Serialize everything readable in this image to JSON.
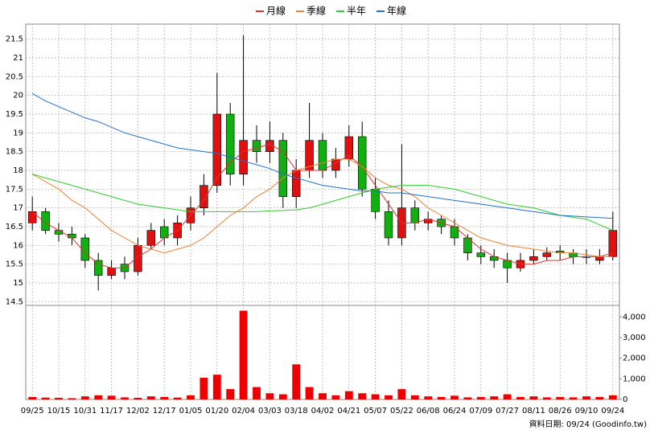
{
  "chart_data": {
    "type": "candlestick",
    "categories": [
      "09/25",
      null,
      "10/15",
      null,
      "10/31",
      null,
      "11/17",
      null,
      "12/02",
      null,
      "12/17",
      null,
      "01/05",
      null,
      "01/20",
      null,
      "02/04",
      null,
      "03/03",
      null,
      "03/18",
      null,
      "04/02",
      null,
      "04/21",
      null,
      "05/07",
      null,
      "05/22",
      null,
      "06/08",
      null,
      "06/24",
      null,
      "07/09",
      null,
      "07/27",
      null,
      "08/11",
      null,
      "08/26",
      null,
      "09/10",
      null,
      "09/24"
    ],
    "open": [
      16.6,
      16.9,
      16.4,
      16.3,
      16.2,
      15.6,
      15.2,
      15.5,
      15.3,
      16.0,
      16.5,
      16.2,
      16.6,
      17.0,
      17.6,
      19.5,
      17.9,
      18.8,
      18.5,
      18.8,
      17.3,
      18.0,
      18.8,
      18.0,
      18.3,
      18.9,
      17.5,
      16.9,
      16.2,
      17.0,
      16.6,
      16.7,
      16.5,
      16.2,
      15.8,
      15.7,
      15.6,
      15.4,
      15.6,
      15.7,
      15.85,
      15.8,
      15.7,
      15.6,
      15.7
    ],
    "high": [
      17.3,
      17.0,
      16.6,
      16.5,
      16.3,
      15.8,
      15.6,
      15.7,
      16.2,
      16.6,
      16.7,
      16.8,
      17.3,
      17.9,
      20.6,
      19.8,
      21.6,
      19.2,
      19.3,
      19.0,
      18.3,
      19.8,
      19.0,
      18.6,
      19.2,
      19.3,
      17.8,
      17.2,
      18.7,
      17.2,
      16.9,
      16.8,
      16.7,
      16.3,
      16.0,
      15.9,
      15.8,
      15.8,
      15.9,
      15.95,
      16.0,
      15.9,
      15.9,
      15.9,
      16.9
    ],
    "low": [
      16.4,
      16.3,
      16.1,
      16.0,
      15.4,
      14.8,
      15.1,
      15.1,
      15.2,
      15.9,
      16.0,
      16.0,
      16.4,
      16.8,
      17.4,
      17.6,
      17.6,
      18.2,
      18.2,
      17.0,
      17.0,
      17.8,
      17.8,
      17.8,
      18.1,
      17.3,
      16.7,
      16.0,
      16.0,
      16.4,
      16.4,
      16.3,
      16.0,
      15.6,
      15.5,
      15.4,
      15.0,
      15.3,
      15.5,
      15.6,
      15.6,
      15.5,
      15.5,
      15.5,
      15.6
    ],
    "close": [
      16.9,
      16.4,
      16.3,
      16.2,
      15.6,
      15.2,
      15.4,
      15.3,
      16.0,
      16.4,
      16.2,
      16.6,
      17.0,
      17.6,
      19.5,
      17.9,
      18.8,
      18.5,
      18.8,
      17.3,
      18.0,
      18.8,
      18.0,
      18.3,
      18.9,
      17.5,
      16.9,
      16.2,
      17.0,
      16.6,
      16.7,
      16.5,
      16.2,
      15.8,
      15.7,
      15.6,
      15.4,
      15.6,
      15.7,
      15.8,
      15.8,
      15.7,
      15.7,
      15.7,
      16.4
    ],
    "volume": [
      120,
      90,
      80,
      60,
      150,
      200,
      180,
      100,
      80,
      150,
      120,
      90,
      200,
      1050,
      1200,
      500,
      4300,
      600,
      300,
      250,
      1700,
      600,
      300,
      200,
      400,
      300,
      250,
      200,
      500,
      200,
      150,
      120,
      180,
      100,
      120,
      150,
      250,
      120,
      150,
      100,
      120,
      100,
      150,
      120,
      200
    ],
    "up_color": "#e01010",
    "down_color": "#10b010",
    "volume_color": "#ee0000",
    "series": [
      {
        "name": "月線",
        "color": "#e03030",
        "values": [
          16.9,
          16.6,
          16.4,
          16.2,
          15.8,
          15.5,
          15.4,
          15.4,
          15.7,
          15.9,
          16.2,
          16.4,
          16.8,
          17.2,
          17.8,
          18.2,
          18.5,
          18.6,
          18.7,
          18.5,
          18.0,
          18.0,
          18.0,
          18.2,
          18.4,
          18.1,
          17.6,
          17.1,
          16.6,
          16.6,
          16.7,
          16.6,
          16.5,
          16.2,
          15.9,
          15.7,
          15.6,
          15.5,
          15.5,
          15.6,
          15.6,
          15.7,
          15.7,
          15.7,
          15.8
        ]
      },
      {
        "name": "季線",
        "color": "#f08030",
        "values": [
          17.9,
          17.7,
          17.5,
          17.2,
          17.0,
          16.7,
          16.4,
          16.2,
          16.0,
          15.9,
          15.8,
          15.9,
          16.0,
          16.2,
          16.5,
          16.8,
          17.0,
          17.3,
          17.5,
          17.8,
          18.0,
          18.1,
          18.2,
          18.3,
          18.3,
          18.1,
          17.8,
          17.6,
          17.5,
          17.3,
          17.0,
          16.8,
          16.6,
          16.4,
          16.2,
          16.1,
          16.0,
          15.95,
          15.9,
          15.85,
          15.8,
          15.8,
          15.75,
          15.7,
          15.7
        ]
      },
      {
        "name": "半年",
        "color": "#30cc30",
        "values": [
          17.9,
          17.8,
          17.7,
          17.6,
          17.5,
          17.4,
          17.3,
          17.2,
          17.1,
          17.05,
          17.0,
          16.95,
          16.9,
          16.9,
          16.9,
          16.9,
          16.9,
          16.9,
          16.92,
          16.93,
          16.95,
          17.0,
          17.1,
          17.2,
          17.3,
          17.4,
          17.5,
          17.55,
          17.6,
          17.6,
          17.6,
          17.55,
          17.5,
          17.4,
          17.3,
          17.2,
          17.1,
          17.05,
          17.0,
          16.9,
          16.8,
          16.75,
          16.7,
          16.55,
          16.4
        ]
      },
      {
        "name": "年線",
        "color": "#2070d0",
        "values": [
          20.05,
          19.85,
          19.7,
          19.55,
          19.4,
          19.3,
          19.15,
          19.0,
          18.9,
          18.8,
          18.7,
          18.6,
          18.55,
          18.5,
          18.45,
          18.35,
          18.25,
          18.15,
          18.05,
          17.9,
          17.8,
          17.7,
          17.6,
          17.55,
          17.5,
          17.45,
          17.45,
          17.4,
          17.4,
          17.35,
          17.3,
          17.25,
          17.2,
          17.15,
          17.1,
          17.05,
          17.0,
          16.95,
          16.9,
          16.85,
          16.8,
          16.78,
          16.76,
          16.74,
          16.72
        ]
      }
    ],
    "ylim": [
      14.4,
      21.9
    ],
    "yticks": [
      14.5,
      15,
      15.5,
      16,
      16.5,
      17,
      17.5,
      18,
      18.5,
      19,
      19.5,
      20,
      20.5,
      21,
      21.5
    ],
    "y2lim": [
      0,
      4400
    ],
    "y2ticks": [
      0,
      {
        "value": 1000,
        "label": "1,000"
      },
      {
        "value": 2000,
        "label": "2,000"
      },
      {
        "value": 3000,
        "label": "3,000"
      },
      {
        "value": 4000,
        "label": "4,000"
      }
    ],
    "grid": true,
    "footnote": "資料日期: 09/24  (Goodinfo.tw)"
  }
}
